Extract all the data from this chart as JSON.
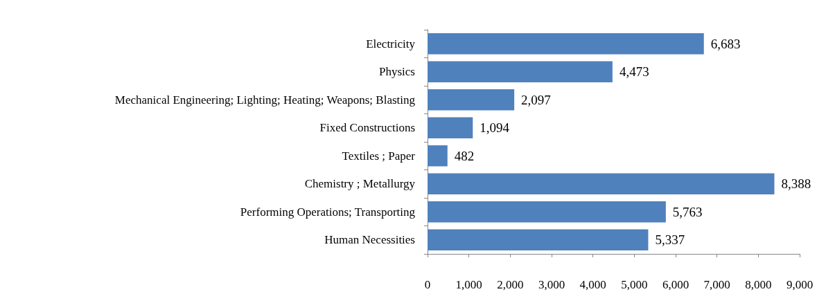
{
  "chart_data": {
    "type": "bar",
    "orientation": "horizontal",
    "categories": [
      "Electricity",
      "Physics",
      "Mechanical Engineering; Lighting; Heating; Weapons; Blasting",
      "Fixed Constructions",
      "Textiles ; Paper",
      "Chemistry ; Metallurgy",
      "Performing Operations; Transporting",
      "Human Necessities"
    ],
    "values": [
      6683,
      4473,
      2097,
      1094,
      482,
      8388,
      5763,
      5337
    ],
    "value_labels": [
      "6,683",
      "4,473",
      "2,097",
      "1,094",
      "482",
      "8,388",
      "5,763",
      "5,337"
    ],
    "color": "#4f81bd",
    "xlim": [
      0,
      9000
    ],
    "xticks": [
      0,
      {
        "value": 1000,
        "label": "1,000"
      },
      {
        "value": 2000,
        "label": "2,000"
      },
      {
        "value": 3000,
        "label": "3,000"
      },
      {
        "value": 4000,
        "label": "4,000"
      },
      {
        "value": 5000,
        "label": "5,000"
      },
      {
        "value": 6000,
        "label": "6,000"
      },
      {
        "value": 7000,
        "label": "7,000"
      },
      {
        "value": 8000,
        "label": "8,000"
      },
      {
        "value": 9000,
        "label": "9,000"
      }
    ],
    "grid": false
  }
}
